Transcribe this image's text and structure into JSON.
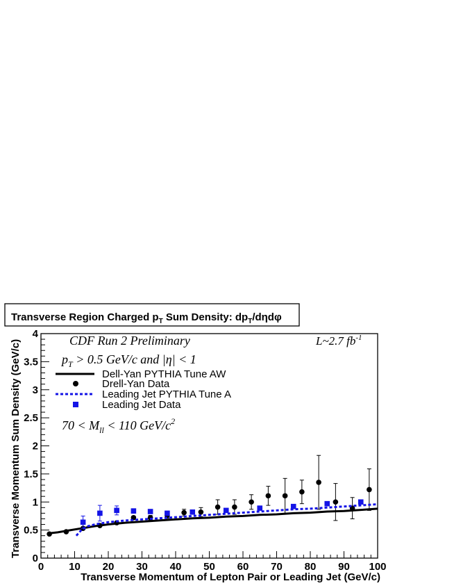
{
  "chart_data": {
    "type": "scatter",
    "title": "Transverse Region Charged p_T Sum Density: dp_T/dηdφ",
    "title_parts": {
      "pre": "Transverse Region Charged p",
      "sub": "T",
      "mid": " Sum Density: dp",
      "sub2": "T",
      "post": "/dηdφ"
    },
    "xlabel": "Transverse Momentum of Lepton Pair or Leading Jet (GeV/c)",
    "ylabel": "Transverse Momentum Sum Density (GeV/c)",
    "xlim": [
      0,
      100
    ],
    "ylim": [
      0,
      4
    ],
    "x_ticks": [
      "0",
      "10",
      "20",
      "30",
      "40",
      "50",
      "60",
      "70",
      "80",
      "90",
      "100"
    ],
    "y_ticks": [
      "0",
      "0.5",
      "1",
      "1.5",
      "2",
      "2.5",
      "3",
      "3.5",
      "4"
    ],
    "annotations": {
      "experiment": "CDF Run 2 Preliminary",
      "cut_pt_p": "p",
      "cut_pt_sub": "T",
      "cut_pt_rest": " > 0.5  GeV/c and |η| < 1",
      "lumi_base": "L~2.7 fb",
      "lumi_sup": "-1",
      "mass_pre": "70 < M",
      "mass_sub": "ll",
      "mass_mid": " < 110 GeV/c",
      "mass_sup": "2"
    },
    "legend_position": "top-left",
    "series": [
      {
        "name": "Dell-Yan PYTHIA Tune AW",
        "kind": "line",
        "style": "solid",
        "color": "#000000",
        "x": [
          2,
          5,
          8,
          12,
          16,
          20,
          25,
          30,
          35,
          40,
          45,
          50,
          55,
          60,
          65,
          70,
          75,
          80,
          85,
          90,
          95,
          100
        ],
        "y": [
          0.44,
          0.46,
          0.49,
          0.53,
          0.57,
          0.6,
          0.63,
          0.65,
          0.67,
          0.69,
          0.71,
          0.72,
          0.74,
          0.75,
          0.77,
          0.78,
          0.8,
          0.81,
          0.83,
          0.84,
          0.86,
          0.88
        ]
      },
      {
        "name": "Drell-Yan Data",
        "kind": "points",
        "marker": "circle",
        "color": "#000000",
        "x": [
          2.5,
          7.5,
          12.5,
          17.5,
          22.5,
          27.5,
          32.5,
          37.5,
          42.5,
          47.5,
          52.5,
          57.5,
          62.5,
          67.5,
          72.5,
          77.5,
          82.5,
          87.5,
          92.5,
          97.5
        ],
        "y": [
          0.43,
          0.47,
          0.53,
          0.58,
          0.63,
          0.72,
          0.72,
          0.76,
          0.81,
          0.82,
          0.91,
          0.91,
          1.0,
          1.11,
          1.11,
          1.18,
          1.35,
          1.0,
          0.89,
          1.22
        ],
        "err": [
          0.01,
          0.01,
          0.01,
          0.02,
          0.02,
          0.03,
          0.04,
          0.05,
          0.06,
          0.08,
          0.13,
          0.13,
          0.13,
          0.17,
          0.31,
          0.21,
          0.48,
          0.33,
          0.19,
          0.37
        ]
      },
      {
        "name": "Leading Jet PYTHIA Tune A",
        "kind": "line",
        "style": "dashed",
        "color": "#1414e6",
        "x": [
          10.5,
          12,
          14,
          16,
          18,
          20,
          25,
          30,
          35,
          40,
          45,
          50,
          55,
          60,
          65,
          70,
          75,
          80,
          85,
          90,
          95,
          100
        ],
        "y": [
          0.4,
          0.5,
          0.57,
          0.6,
          0.62,
          0.64,
          0.67,
          0.69,
          0.71,
          0.73,
          0.75,
          0.77,
          0.79,
          0.81,
          0.83,
          0.85,
          0.87,
          0.88,
          0.9,
          0.92,
          0.94,
          0.96
        ]
      },
      {
        "name": "Leading Jet Data",
        "kind": "points",
        "marker": "square",
        "color": "#1414e6",
        "x": [
          12.5,
          17.5,
          22.5,
          27.5,
          32.5,
          37.5,
          45,
          55,
          65,
          75,
          85,
          95
        ],
        "y": [
          0.64,
          0.8,
          0.85,
          0.84,
          0.83,
          0.8,
          0.82,
          0.85,
          0.89,
          0.92,
          0.97,
          1.0
        ],
        "err": [
          0.11,
          0.14,
          0.08,
          0.04,
          0.03,
          0.03,
          0.02,
          0.02,
          0.02,
          0.02,
          0.02,
          0.03
        ]
      }
    ]
  }
}
